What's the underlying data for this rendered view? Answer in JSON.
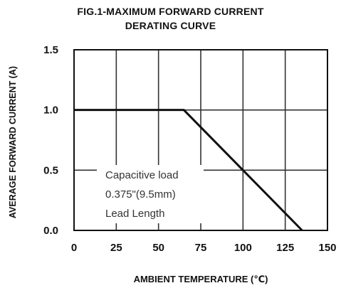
{
  "chart_data": {
    "type": "line",
    "title_lines": [
      "FIG.1-MAXIMUM FORWARD CURRENT",
      "DERATING CURVE"
    ],
    "xlabel": "AMBIENT TEMPERATURE (℃)",
    "ylabel": "AVERAGE FORWARD CURRENT (A)",
    "xlim": [
      0,
      150
    ],
    "ylim": [
      0,
      1.5
    ],
    "xticks": [
      0,
      25,
      50,
      75,
      100,
      125,
      150
    ],
    "yticks": [
      "0.0",
      "0.5",
      "1.0",
      "1.5"
    ],
    "x_gridlines": [
      25,
      50,
      75,
      100,
      125
    ],
    "y_gridlines": [
      0.5,
      1.0
    ],
    "grid": true,
    "series": [
      {
        "x": [
          0,
          65,
          135
        ],
        "y": [
          1.0,
          1.0,
          0.0
        ]
      }
    ],
    "annotation_lines": [
      "Capacitive load",
      "0.375\"(9.5mm)",
      "Lead Length"
    ],
    "colors": {
      "line": "#111111",
      "grid": "#333333",
      "text": "#111111",
      "annotation": "#333333"
    }
  }
}
